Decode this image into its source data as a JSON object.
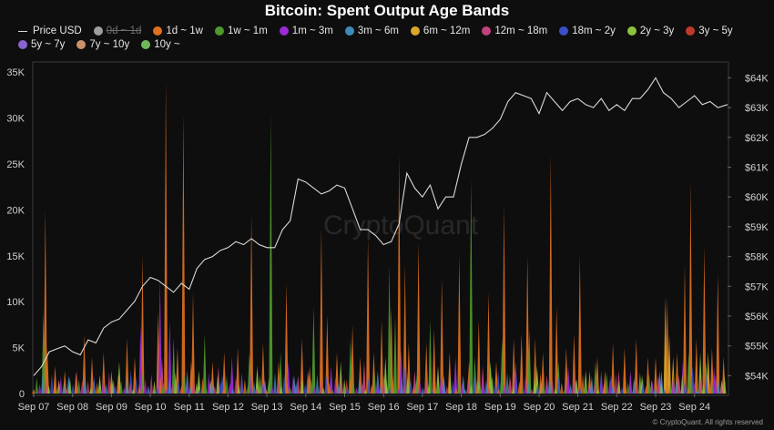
{
  "chart_data": {
    "type": "area",
    "title": "Bitcoin: Spent Output Age Bands",
    "xlabel": "",
    "ylabel_left": "",
    "ylabel_right": "",
    "x_tick_labels": [
      "Sep 07",
      "Sep 08",
      "Sep 09",
      "Sep 10",
      "Sep 11",
      "Sep 12",
      "Sep 13",
      "Sep 14",
      "Sep 15",
      "Sep 16",
      "Sep 17",
      "Sep 18",
      "Sep 19",
      "Sep 20",
      "Sep 21",
      "Sep 22",
      "Sep 23",
      "Sep 24"
    ],
    "y_left_tick_labels": [
      "0",
      "5K",
      "10K",
      "15K",
      "20K",
      "25K",
      "30K",
      "35K"
    ],
    "y_left_ticks": [
      0,
      5000,
      10000,
      15000,
      20000,
      25000,
      30000,
      35000
    ],
    "ylim_left": [
      0,
      36000
    ],
    "y_right_tick_labels": [
      "$54K",
      "$55K",
      "$56K",
      "$57K",
      "$58K",
      "$59K",
      "$60K",
      "$61K",
      "$62K",
      "$63K",
      "$64K"
    ],
    "y_right_ticks": [
      54000,
      55000,
      56000,
      57000,
      58000,
      59000,
      60000,
      61000,
      62000,
      63000,
      64000
    ],
    "ylim_right": [
      53400,
      64500
    ],
    "xlim": [
      0,
      17.85
    ],
    "grid": false,
    "legend_position": "top-left",
    "legend": [
      {
        "label": "Price USD",
        "color": "#d9d9d9",
        "style": "line",
        "enabled": true
      },
      {
        "label": "0d ~ 1d",
        "color": "#9e9e9e",
        "style": "dot",
        "enabled": false
      },
      {
        "label": "1d ~ 1w",
        "color": "#e0701f",
        "style": "dot",
        "enabled": true
      },
      {
        "label": "1w ~ 1m",
        "color": "#4e9a2c",
        "style": "dot",
        "enabled": true
      },
      {
        "label": "1m ~ 3m",
        "color": "#9b2bd4",
        "style": "dot",
        "enabled": true
      },
      {
        "label": "3m ~ 6m",
        "color": "#3f8bb8",
        "style": "dot",
        "enabled": true
      },
      {
        "label": "6m ~ 12m",
        "color": "#d9a82a",
        "style": "dot",
        "enabled": true
      },
      {
        "label": "12m ~ 18m",
        "color": "#c2417f",
        "style": "dot",
        "enabled": true
      },
      {
        "label": "18m ~ 2y",
        "color": "#3a4fc9",
        "style": "dot",
        "enabled": true
      },
      {
        "label": "2y ~ 3y",
        "color": "#8cc33c",
        "style": "dot",
        "enabled": true
      },
      {
        "label": "3y ~ 5y",
        "color": "#c0392b",
        "style": "dot",
        "enabled": true
      },
      {
        "label": "5y ~ 7y",
        "color": "#8a63d2",
        "style": "dot",
        "enabled": true
      },
      {
        "label": "7y ~ 10y",
        "color": "#c9926b",
        "style": "dot",
        "enabled": true
      },
      {
        "label": "10y ~",
        "color": "#6fb85a",
        "style": "dot",
        "enabled": true
      }
    ],
    "watermark": "CryptoQuant",
    "credit": "© CryptoQuant. All rights reserved",
    "price_series": {
      "name": "Price USD",
      "color": "#d9d9d9",
      "x": [
        0.0,
        0.2,
        0.4,
        0.6,
        0.8,
        1.0,
        1.2,
        1.4,
        1.6,
        1.8,
        2.0,
        2.2,
        2.4,
        2.6,
        2.8,
        3.0,
        3.2,
        3.4,
        3.6,
        3.8,
        4.0,
        4.2,
        4.4,
        4.6,
        4.8,
        5.0,
        5.2,
        5.4,
        5.6,
        5.8,
        6.0,
        6.2,
        6.4,
        6.6,
        6.8,
        7.0,
        7.2,
        7.4,
        7.6,
        7.8,
        8.0,
        8.2,
        8.4,
        8.6,
        8.8,
        9.0,
        9.2,
        9.4,
        9.6,
        9.8,
        10.0,
        10.2,
        10.4,
        10.6,
        10.8,
        11.0,
        11.2,
        11.4,
        11.6,
        11.8,
        12.0,
        12.2,
        12.4,
        12.6,
        12.8,
        13.0,
        13.2,
        13.4,
        13.6,
        13.8,
        14.0,
        14.2,
        14.4,
        14.6,
        14.8,
        15.0,
        15.2,
        15.4,
        15.6,
        15.8,
        16.0,
        16.2,
        16.4,
        16.6,
        16.8,
        17.0,
        17.2,
        17.4,
        17.6,
        17.85
      ],
      "y": [
        54000,
        54300,
        54800,
        54900,
        55000,
        54800,
        54700,
        55200,
        55100,
        55600,
        55800,
        55900,
        56200,
        56500,
        57000,
        57300,
        57200,
        57000,
        56800,
        57100,
        56900,
        57600,
        57900,
        58000,
        58200,
        58300,
        58500,
        58400,
        58600,
        58400,
        58300,
        58300,
        58900,
        59200,
        60600,
        60500,
        60300,
        60100,
        60200,
        60400,
        60300,
        59600,
        58900,
        58900,
        58700,
        58400,
        58500,
        59100,
        60800,
        60300,
        60000,
        60400,
        59600,
        60000,
        60000,
        61100,
        62000,
        62000,
        62100,
        62300,
        62600,
        63200,
        63500,
        63400,
        63300,
        62800,
        63500,
        63200,
        62900,
        63200,
        63300,
        63100,
        63000,
        63300,
        62900,
        63100,
        62900,
        63300,
        63300,
        63600,
        64000,
        63500,
        63300,
        63000,
        63200,
        63400,
        63100,
        63200,
        63000,
        63100
      ]
    },
    "bars": {
      "note": "approximate values read off the left axis; x in day units (0 = Sep 07)",
      "series": [
        {
          "name": "1d ~ 1w",
          "color": "#e0701f",
          "x": [
            0.3,
            0.35,
            0.55,
            0.8,
            1.3,
            1.5,
            1.8,
            2.0,
            2.4,
            2.6,
            2.8,
            3.2,
            3.4,
            3.7,
            3.85,
            4.05,
            4.1,
            4.6,
            4.9,
            5.25,
            5.6,
            5.9,
            6.3,
            6.5,
            6.9,
            7.1,
            7.4,
            7.55,
            7.8,
            8.2,
            8.4,
            8.6,
            8.75,
            8.95,
            9.2,
            9.4,
            9.55,
            9.65,
            9.9,
            10.1,
            10.3,
            10.5,
            10.7,
            10.95,
            11.2,
            11.45,
            11.7,
            11.9,
            12.1,
            12.35,
            12.55,
            12.7,
            12.9,
            13.1,
            13.3,
            13.45,
            13.7,
            13.9,
            14.05,
            14.3,
            14.5,
            14.7,
            14.9,
            15.2,
            15.5,
            15.8,
            16.0,
            16.3,
            16.55,
            16.75,
            16.9,
            17.05,
            17.25,
            17.45,
            17.6,
            17.75
          ],
          "y": [
            20000,
            5000,
            3000,
            2500,
            6500,
            4000,
            4500,
            2500,
            6000,
            4000,
            15000,
            9000,
            34000,
            5000,
            30500,
            3500,
            11000,
            3500,
            4500,
            5000,
            19500,
            5500,
            3500,
            12000,
            6000,
            3000,
            18000,
            8500,
            4500,
            7500,
            4000,
            17000,
            4500,
            8000,
            9500,
            26000,
            14000,
            5500,
            16500,
            5500,
            7000,
            12500,
            4500,
            15000,
            3500,
            8000,
            11000,
            3500,
            20500,
            6000,
            6500,
            15000,
            6000,
            4500,
            26000,
            9500,
            5000,
            6500,
            15000,
            2500,
            4000,
            2500,
            5500,
            5000,
            6000,
            4000,
            4000,
            10500,
            4500,
            14000,
            23000,
            6000,
            16000,
            5000,
            13000,
            4000
          ]
        },
        {
          "name": "1w ~ 1m",
          "color": "#4e9a2c",
          "x": [
            0.25,
            3.6,
            4.4,
            5.55,
            6.1,
            6.35,
            7.2,
            8.15,
            9.15,
            9.3,
            10.2,
            11.25,
            11.35,
            12.05,
            12.75,
            13.5,
            14.45,
            16.85,
            17.3
          ],
          "y": [
            9000,
            6000,
            6500,
            4500,
            30500,
            4500,
            9500,
            6000,
            14000,
            8500,
            8000,
            23500,
            4000,
            6000,
            7000,
            3500,
            3500,
            4500,
            3500
          ]
        },
        {
          "name": "6m ~ 12m",
          "color": "#d9a82a",
          "x": [
            16.25,
            16.35,
            16.45,
            17.35
          ],
          "y": [
            10500,
            6500,
            4000,
            4500
          ]
        },
        {
          "name": "1m ~ 3m",
          "color": "#9b2bd4",
          "x": [
            2.75,
            3.25,
            3.5,
            5.1,
            6.55,
            7.65,
            9.45,
            10.85,
            12.4,
            13.75,
            14.6,
            15.35,
            16.7,
            17.5
          ],
          "y": [
            7500,
            12500,
            8000,
            4000,
            3500,
            3000,
            5000,
            4000,
            3500,
            3000,
            2500,
            2500,
            3500,
            3000
          ]
        },
        {
          "name": "12m ~ 18m",
          "color": "#c2417f",
          "x": [
            1.1,
            3.3,
            4.75,
            6.8,
            8.5,
            9.8,
            11.55,
            13.2,
            15.05,
            16.6
          ],
          "y": [
            2500,
            4000,
            3000,
            2000,
            3500,
            2500,
            3000,
            2000,
            2500,
            2000
          ]
        },
        {
          "name": "2y ~ 3y",
          "color": "#8cc33c",
          "x": [
            1.7,
            2.2,
            4.25,
            5.75,
            7.9,
            9.05,
            10.4,
            11.75,
            12.95,
            14.2,
            15.65,
            17.15
          ],
          "y": [
            2000,
            3500,
            2500,
            3000,
            3500,
            4000,
            3000,
            3500,
            3000,
            2500,
            2000,
            4500
          ]
        },
        {
          "name": "18m ~ 2y",
          "color": "#3a4fc9",
          "x": [
            2.5,
            4.85,
            7.05,
            9.55,
            11.95,
            14.85,
            16.95
          ],
          "y": [
            2500,
            2000,
            2500,
            3000,
            2500,
            2000,
            3000
          ]
        },
        {
          "name": "3m ~ 6m",
          "color": "#3f8bb8",
          "x": [
            0.9,
            3.95,
            6.7,
            8.85,
            11.05,
            13.95,
            16.15
          ],
          "y": [
            2000,
            2500,
            2000,
            2500,
            2000,
            1500,
            2500
          ]
        },
        {
          "name": "3y ~ 5y",
          "color": "#c0392b",
          "x": [
            1.25,
            5.35,
            8.05,
            12.25,
            15.45
          ],
          "y": [
            1500,
            2000,
            1500,
            2000,
            1500
          ]
        },
        {
          "name": "5y ~ 7y",
          "color": "#8a63d2",
          "x": [
            2.05,
            5.95,
            10.55,
            14.35,
            16.1
          ],
          "y": [
            1500,
            1500,
            2000,
            1500,
            2500
          ]
        },
        {
          "name": "7y ~ 10y",
          "color": "#c9926b",
          "x": [
            0.65,
            4.55,
            9.85,
            13.05,
            17.7
          ],
          "y": [
            1500,
            1500,
            1500,
            1500,
            1500
          ]
        },
        {
          "name": "10y ~",
          "color": "#6fb85a",
          "x": [
            1.55,
            6.05,
            11.45,
            15.9
          ],
          "y": [
            1500,
            1500,
            1500,
            1500
          ]
        }
      ]
    }
  }
}
